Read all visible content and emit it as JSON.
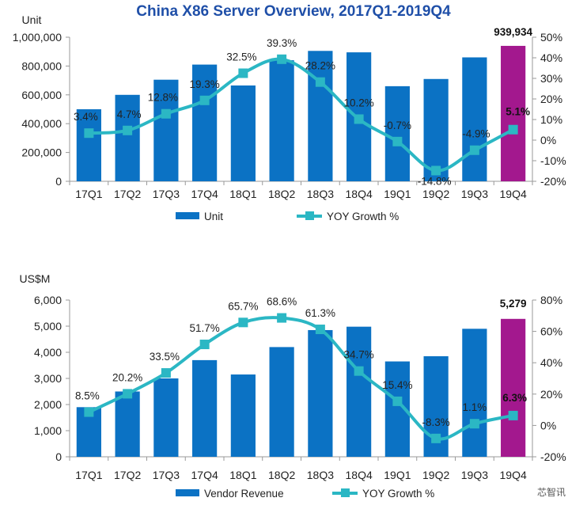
{
  "watermark": "芯智讯",
  "colors": {
    "bar": "#0b72c4",
    "highlight": "#a3188e",
    "line": "#2bb7c4",
    "axis": "#999999"
  },
  "chart_data": [
    {
      "type": "bar",
      "title": "China X86 Server Overview, 2017Q1-2019Q4",
      "ylabel": "Unit",
      "categories": [
        "17Q1",
        "17Q2",
        "17Q3",
        "17Q4",
        "18Q1",
        "18Q2",
        "18Q3",
        "18Q4",
        "19Q1",
        "19Q2",
        "19Q3",
        "19Q4"
      ],
      "series": [
        {
          "name": "Unit",
          "type": "bar",
          "axis": "left",
          "values": [
            500000,
            600000,
            705000,
            810000,
            665000,
            840000,
            905000,
            895000,
            660000,
            710000,
            860000,
            939934
          ]
        },
        {
          "name": "YOY Growth %",
          "type": "line",
          "axis": "right",
          "values": [
            3.4,
            4.7,
            12.8,
            19.3,
            32.5,
            39.3,
            28.2,
            10.2,
            -0.7,
            -14.8,
            -4.9,
            5.1
          ]
        }
      ],
      "highlight_index": 11,
      "highlight_value_label": "939,934",
      "point_labels": [
        "3.4%",
        "4.7%",
        "12.8%",
        "19.3%",
        "32.5%",
        "39.3%",
        "28.2%",
        "10.2%",
        "-0.7%",
        "-14.8%",
        "-4.9%",
        "5.1%"
      ],
      "ylim": [
        0,
        1000000
      ],
      "yticks": [
        0,
        200000,
        400000,
        600000,
        800000,
        1000000
      ],
      "ytick_labels": [
        "0",
        "200,000",
        "400,000",
        "600,000",
        "800,000",
        "1,000,000"
      ],
      "y2lim": [
        -20,
        50
      ],
      "y2ticks": [
        -20,
        -10,
        0,
        10,
        20,
        30,
        40,
        50
      ],
      "y2tick_labels": [
        "-20%",
        "-10%",
        "0%",
        "10%",
        "20%",
        "30%",
        "40%",
        "50%"
      ],
      "legend": [
        "Unit",
        "YOY Growth %"
      ],
      "legend_position": "bottom"
    },
    {
      "type": "bar",
      "ylabel": "US$M",
      "categories": [
        "17Q1",
        "17Q2",
        "17Q3",
        "17Q4",
        "18Q1",
        "18Q2",
        "18Q3",
        "18Q4",
        "19Q1",
        "19Q2",
        "19Q3",
        "19Q4"
      ],
      "series": [
        {
          "name": "Vendor Revenue",
          "type": "bar",
          "axis": "left",
          "values": [
            1900,
            2500,
            3000,
            3700,
            3150,
            4200,
            4850,
            4980,
            3650,
            3850,
            4900,
            5279
          ]
        },
        {
          "name": "YOY Growth %",
          "type": "line",
          "axis": "right",
          "values": [
            8.5,
            20.2,
            33.5,
            51.7,
            65.7,
            68.6,
            61.3,
            34.7,
            15.4,
            -8.3,
            1.1,
            6.3
          ]
        }
      ],
      "highlight_index": 11,
      "highlight_value_label": "5,279",
      "point_labels": [
        "8.5%",
        "20.2%",
        "33.5%",
        "51.7%",
        "65.7%",
        "68.6%",
        "61.3%",
        "34.7%",
        "15.4%",
        "-8.3%",
        "1.1%",
        "6.3%"
      ],
      "ylim": [
        0,
        6000
      ],
      "yticks": [
        0,
        1000,
        2000,
        3000,
        4000,
        5000,
        6000
      ],
      "ytick_labels": [
        "0",
        "1,000",
        "2,000",
        "3,000",
        "4,000",
        "5,000",
        "6,000"
      ],
      "y2lim": [
        -20,
        80
      ],
      "y2ticks": [
        -20,
        0,
        20,
        40,
        60,
        80
      ],
      "y2tick_labels": [
        "-20%",
        "0%",
        "20%",
        "40%",
        "60%",
        "80%"
      ],
      "legend": [
        "Vendor Revenue",
        "YOY Growth %"
      ],
      "legend_position": "bottom"
    }
  ]
}
